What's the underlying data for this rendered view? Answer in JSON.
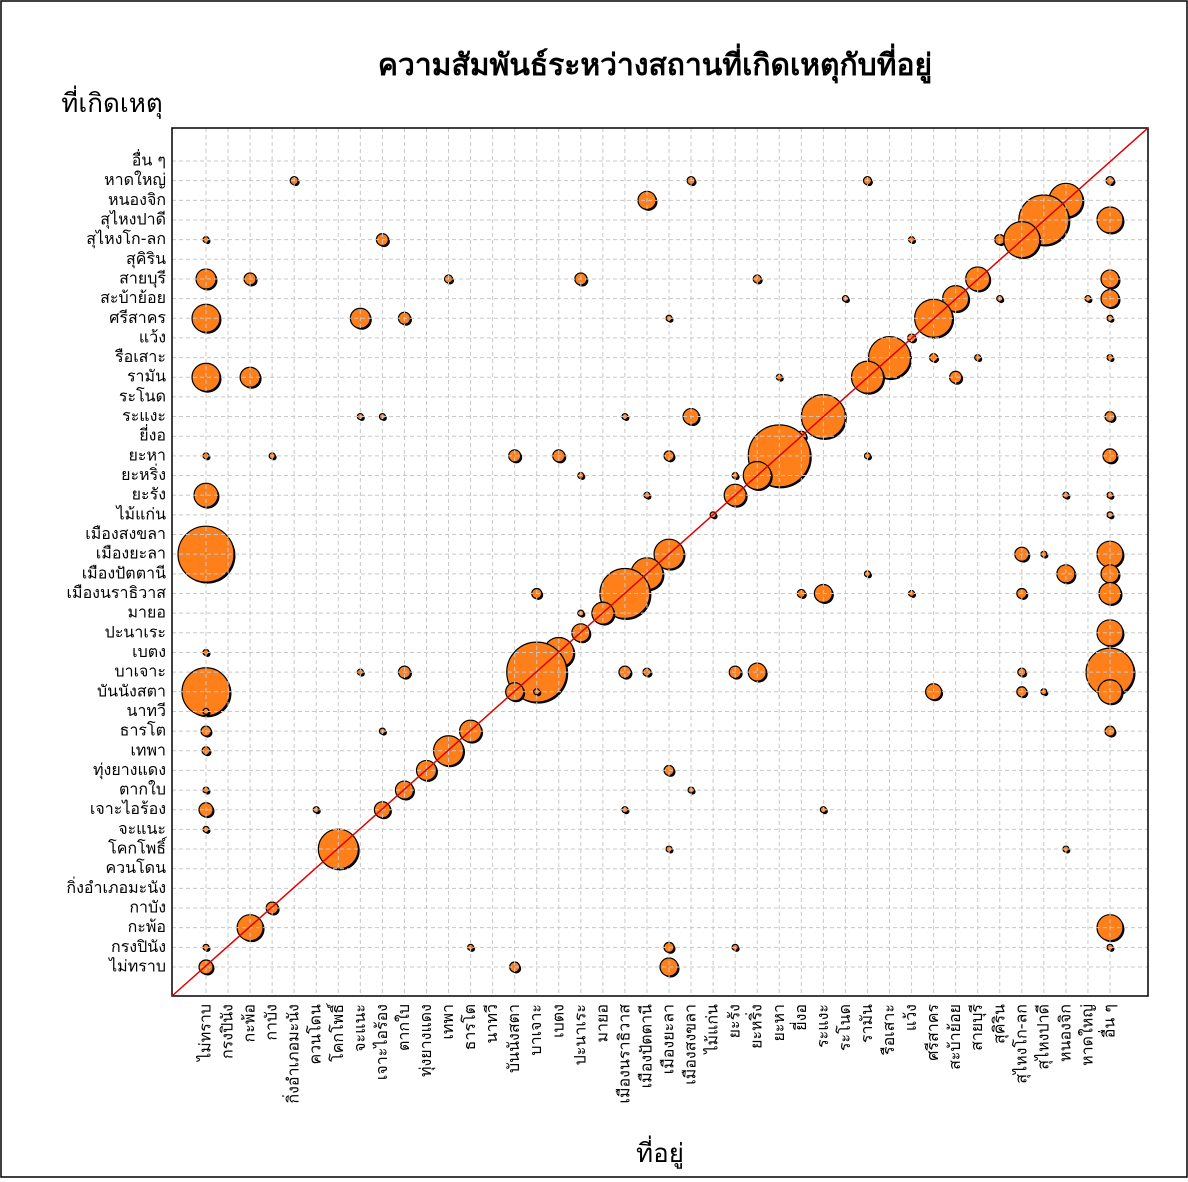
{
  "chart_data": {
    "type": "balloon",
    "title": "ความสัมพันธ์ระหว่างสถานที่เกิดเหตุกับที่อยู่",
    "x_label": "ที่อยู่",
    "y_label": "ที่เกิดเหตุ",
    "color": "#ff7f1a",
    "grid": true,
    "categories": [
      "ไม่ทราบ",
      "กรงปินัง",
      "กะพ้อ",
      "กาบัง",
      "กิ่งอำเภอมะนัง",
      "ควนโดน",
      "โคกโพธิ์",
      "จะแนะ",
      "เจาะไอร้อง",
      "ตากใบ",
      "ทุ่งยางแดง",
      "เทพา",
      "ธารโต",
      "นาทวี",
      "บันนังสตา",
      "บาเจาะ",
      "เบตง",
      "ปะนาเระ",
      "มายอ",
      "เมืองนราธิวาส",
      "เมืองปัตตานี",
      "เมืองยะลา",
      "เมืองสงขลา",
      "ไม้แก่น",
      "ยะรัง",
      "ยะหริ่ง",
      "ยะหา",
      "ยี่งอ",
      "ระแงะ",
      "ระโนด",
      "รามัน",
      "รือเสาะ",
      "แว้ง",
      "ศรีสาคร",
      "สะบ้าย้อย",
      "สายบุรี",
      "สุคิริน",
      "สุไหงโก-ลก",
      "สุไหงปาดี",
      "หนองจิก",
      "หาดใหญ่",
      "อื่น ๆ"
    ],
    "points": [
      {
        "x": "กิ่งอำเภอมะนัง",
        "y": "หาดใหญ่",
        "size": 4
      },
      {
        "x": "เมืองสงขลา",
        "y": "หาดใหญ่",
        "size": 4
      },
      {
        "x": "รามัน",
        "y": "หาดใหญ่",
        "size": 4
      },
      {
        "x": "อื่น ๆ",
        "y": "หาดใหญ่",
        "size": 4
      },
      {
        "x": "เมืองปัตตานี",
        "y": "หนองจิก",
        "size": 9
      },
      {
        "x": "หนองจิก",
        "y": "หนองจิก",
        "size": 17
      },
      {
        "x": "สุไหงปาดี",
        "y": "สุไหงปาดี",
        "size": 25
      },
      {
        "x": "อื่น ๆ",
        "y": "สุไหงปาดี",
        "size": 13
      },
      {
        "x": "ไม่ทราบ",
        "y": "สุไหงโก-ลก",
        "size": 3
      },
      {
        "x": "เจาะไอร้อง",
        "y": "สุไหงโก-ลก",
        "size": 6
      },
      {
        "x": "แว้ง",
        "y": "สุไหงโก-ลก",
        "size": 3
      },
      {
        "x": "สุคิริน",
        "y": "สุไหงโก-ลก",
        "size": 5
      },
      {
        "x": "สุไหงโก-ลก",
        "y": "สุไหงโก-ลก",
        "size": 18
      },
      {
        "x": "ไม่ทราบ",
        "y": "สายบุรี",
        "size": 10
      },
      {
        "x": "กะพ้อ",
        "y": "สายบุรี",
        "size": 6
      },
      {
        "x": "เทพา",
        "y": "สายบุรี",
        "size": 4
      },
      {
        "x": "ปะนาเระ",
        "y": "สายบุรี",
        "size": 6
      },
      {
        "x": "ยะหริ่ง",
        "y": "สายบุรี",
        "size": 4
      },
      {
        "x": "สายบุรี",
        "y": "สายบุรี",
        "size": 12
      },
      {
        "x": "อื่น ๆ",
        "y": "สายบุรี",
        "size": 9
      },
      {
        "x": "ระโนด",
        "y": "สะบ้าย้อย",
        "size": 3
      },
      {
        "x": "สะบ้าย้อย",
        "y": "สะบ้าย้อย",
        "size": 13
      },
      {
        "x": "สุคิริน",
        "y": "สะบ้าย้อย",
        "size": 3
      },
      {
        "x": "หาดใหญ่",
        "y": "สะบ้าย้อย",
        "size": 3
      },
      {
        "x": "อื่น ๆ",
        "y": "สะบ้าย้อย",
        "size": 9
      },
      {
        "x": "ไม่ทราบ",
        "y": "ศรีสาคร",
        "size": 14
      },
      {
        "x": "จะแนะ",
        "y": "ศรีสาคร",
        "size": 10
      },
      {
        "x": "ตากใบ",
        "y": "ศรีสาคร",
        "size": 6
      },
      {
        "x": "เมืองยะลา",
        "y": "ศรีสาคร",
        "size": 3
      },
      {
        "x": "ศรีสาคร",
        "y": "ศรีสาคร",
        "size": 19
      },
      {
        "x": "อื่น ๆ",
        "y": "ศรีสาคร",
        "size": 3
      },
      {
        "x": "แว้ง",
        "y": "แว้ง",
        "size": 4
      },
      {
        "x": "รือเสาะ",
        "y": "รือเสาะ",
        "size": 21
      },
      {
        "x": "ศรีสาคร",
        "y": "รือเสาะ",
        "size": 4
      },
      {
        "x": "สายบุรี",
        "y": "รือเสาะ",
        "size": 3
      },
      {
        "x": "อื่น ๆ",
        "y": "รือเสาะ",
        "size": 3
      },
      {
        "x": "ไม่ทราบ",
        "y": "รามัน",
        "size": 14
      },
      {
        "x": "กะพ้อ",
        "y": "รามัน",
        "size": 10
      },
      {
        "x": "ยะหา",
        "y": "รามัน",
        "size": 3
      },
      {
        "x": "รามัน",
        "y": "รามัน",
        "size": 16
      },
      {
        "x": "สะบ้าย้อย",
        "y": "รามัน",
        "size": 6
      },
      {
        "x": "จะแนะ",
        "y": "ระแงะ",
        "size": 3
      },
      {
        "x": "เจาะไอร้อง",
        "y": "ระแงะ",
        "size": 3
      },
      {
        "x": "เมืองนราธิวาส",
        "y": "ระแงะ",
        "size": 3
      },
      {
        "x": "เมืองสงขลา",
        "y": "ระแงะ",
        "size": 8
      },
      {
        "x": "ระแงะ",
        "y": "ระแงะ",
        "size": 22
      },
      {
        "x": "อื่น ๆ",
        "y": "ระแงะ",
        "size": 5
      },
      {
        "x": "ยี่งอ",
        "y": "ยี่งอ",
        "size": 5
      },
      {
        "x": "ไม่ทราบ",
        "y": "ยะหา",
        "size": 3
      },
      {
        "x": "กาบัง",
        "y": "ยะหา",
        "size": 3
      },
      {
        "x": "บันนังสตา",
        "y": "ยะหา",
        "size": 6
      },
      {
        "x": "เบตง",
        "y": "ยะหา",
        "size": 6
      },
      {
        "x": "เมืองยะลา",
        "y": "ยะหา",
        "size": 5
      },
      {
        "x": "ยะหา",
        "y": "ยะหา",
        "size": 31
      },
      {
        "x": "รามัน",
        "y": "ยะหา",
        "size": 3
      },
      {
        "x": "อื่น ๆ",
        "y": "ยะหา",
        "size": 7
      },
      {
        "x": "ปะนาเระ",
        "y": "ยะหริ่ง",
        "size": 3
      },
      {
        "x": "ยะรัง",
        "y": "ยะหริ่ง",
        "size": 3
      },
      {
        "x": "ยะหริ่ง",
        "y": "ยะหริ่ง",
        "size": 14
      },
      {
        "x": "ไม่ทราบ",
        "y": "ยะรัง",
        "size": 12
      },
      {
        "x": "เมืองปัตตานี",
        "y": "ยะรัง",
        "size": 3
      },
      {
        "x": "ยะรัง",
        "y": "ยะรัง",
        "size": 11
      },
      {
        "x": "หนองจิก",
        "y": "ยะรัง",
        "size": 3
      },
      {
        "x": "อื่น ๆ",
        "y": "ยะรัง",
        "size": 3
      },
      {
        "x": "ไม้แก่น",
        "y": "ไม้แก่น",
        "size": 3
      },
      {
        "x": "อื่น ๆ",
        "y": "ไม้แก่น",
        "size": 3
      },
      {
        "x": "ไม่ทราบ",
        "y": "เมืองยะลา",
        "size": 28
      },
      {
        "x": "เมืองยะลา",
        "y": "เมืองยะลา",
        "size": 15
      },
      {
        "x": "สุไหงโก-ลก",
        "y": "เมืองยะลา",
        "size": 7
      },
      {
        "x": "สุไหงปาดี",
        "y": "เมืองยะลา",
        "size": 3
      },
      {
        "x": "อื่น ๆ",
        "y": "เมืองยะลา",
        "size": 13
      },
      {
        "x": "เมืองปัตตานี",
        "y": "เมืองปัตตานี",
        "size": 16
      },
      {
        "x": "รามัน",
        "y": "เมืองปัตตานี",
        "size": 3
      },
      {
        "x": "หนองจิก",
        "y": "เมืองปัตตานี",
        "size": 9
      },
      {
        "x": "อื่น ๆ",
        "y": "เมืองปัตตานี",
        "size": 9
      },
      {
        "x": "บาเจาะ",
        "y": "เมืองนราธิวาส",
        "size": 5
      },
      {
        "x": "เมืองนราธิวาส",
        "y": "เมืองนราธิวาส",
        "size": 25
      },
      {
        "x": "ยี่งอ",
        "y": "เมืองนราธิวาส",
        "size": 4
      },
      {
        "x": "ระแงะ",
        "y": "เมืองนราธิวาส",
        "size": 9
      },
      {
        "x": "แว้ง",
        "y": "เมืองนราธิวาส",
        "size": 3
      },
      {
        "x": "สุไหงโก-ลก",
        "y": "เมืองนราธิวาส",
        "size": 5
      },
      {
        "x": "อื่น ๆ",
        "y": "เมืองนราธิวาส",
        "size": 11
      },
      {
        "x": "ปะนาเระ",
        "y": "มายอ",
        "size": 3
      },
      {
        "x": "มายอ",
        "y": "มายอ",
        "size": 11
      },
      {
        "x": "ปะนาเระ",
        "y": "ปะนาเระ",
        "size": 9
      },
      {
        "x": "อื่น ๆ",
        "y": "ปะนาเระ",
        "size": 13
      },
      {
        "x": "ไม่ทราบ",
        "y": "เบตง",
        "size": 3
      },
      {
        "x": "เบตง",
        "y": "เบตง",
        "size": 15
      },
      {
        "x": "ไม่ทราบ",
        "y": "บาเจาะ",
        "size": 3
      },
      {
        "x": "จะแนะ",
        "y": "บาเจาะ",
        "size": 3
      },
      {
        "x": "ตากใบ",
        "y": "บาเจาะ",
        "size": 6
      },
      {
        "x": "บาเจาะ",
        "y": "บาเจาะ",
        "size": 30
      },
      {
        "x": "เมืองนราธิวาส",
        "y": "บาเจาะ",
        "size": 6
      },
      {
        "x": "เมืองปัตตานี",
        "y": "บาเจาะ",
        "size": 4
      },
      {
        "x": "ยะรัง",
        "y": "บาเจาะ",
        "size": 6
      },
      {
        "x": "ยะหริ่ง",
        "y": "บาเจาะ",
        "size": 9
      },
      {
        "x": "สุไหงโก-ลก",
        "y": "บาเจาะ",
        "size": 4
      },
      {
        "x": "อื่น ๆ",
        "y": "บาเจาะ",
        "size": 24
      },
      {
        "x": "ไม่ทราบ",
        "y": "บันนังสตา",
        "size": 24
      },
      {
        "x": "บันนังสตา",
        "y": "บันนังสตา",
        "size": 9
      },
      {
        "x": "บาเจาะ",
        "y": "บันนังสตา",
        "size": 3
      },
      {
        "x": "ศรีสาคร",
        "y": "บันนังสตา",
        "size": 8
      },
      {
        "x": "สุไหงโก-ลก",
        "y": "บันนังสตา",
        "size": 5
      },
      {
        "x": "สุไหงปาดี",
        "y": "บันนังสตา",
        "size": 3
      },
      {
        "x": "อื่น ๆ",
        "y": "บันนังสตา",
        "size": 12
      },
      {
        "x": "ไม่ทราบ",
        "y": "นาทวี",
        "size": 3
      },
      {
        "x": "ไม่ทราบ",
        "y": "ธารโต",
        "size": 5
      },
      {
        "x": "เจาะไอร้อง",
        "y": "ธารโต",
        "size": 3
      },
      {
        "x": "ธารโต",
        "y": "ธารโต",
        "size": 11
      },
      {
        "x": "อื่น ๆ",
        "y": "ธารโต",
        "size": 5
      },
      {
        "x": "ไม่ทราบ",
        "y": "เทพา",
        "size": 4
      },
      {
        "x": "เทพา",
        "y": "เทพา",
        "size": 15
      },
      {
        "x": "ทุ่งยางแดง",
        "y": "ทุ่งยางแดง",
        "size": 10
      },
      {
        "x": "เมืองยะลา",
        "y": "ทุ่งยางแดง",
        "size": 5
      },
      {
        "x": "ไม่ทราบ",
        "y": "ตากใบ",
        "size": 3
      },
      {
        "x": "ตากใบ",
        "y": "ตากใบ",
        "size": 9
      },
      {
        "x": "เมืองสงขลา",
        "y": "ตากใบ",
        "size": 3
      },
      {
        "x": "ไม่ทราบ",
        "y": "เจาะไอร้อง",
        "size": 7
      },
      {
        "x": "ควนโดน",
        "y": "เจาะไอร้อง",
        "size": 3
      },
      {
        "x": "เจาะไอร้อง",
        "y": "เจาะไอร้อง",
        "size": 8
      },
      {
        "x": "เมืองนราธิวาส",
        "y": "เจาะไอร้อง",
        "size": 3
      },
      {
        "x": "ระแงะ",
        "y": "เจาะไอร้อง",
        "size": 3
      },
      {
        "x": "ไม่ทราบ",
        "y": "จะแนะ",
        "size": 3
      },
      {
        "x": "โคกโพธิ์",
        "y": "โคกโพธิ์",
        "size": 20
      },
      {
        "x": "เมืองยะลา",
        "y": "โคกโพธิ์",
        "size": 3
      },
      {
        "x": "หนองจิก",
        "y": "โคกโพธิ์",
        "size": 3
      },
      {
        "x": "กาบัง",
        "y": "กาบัง",
        "size": 6
      },
      {
        "x": "กะพ้อ",
        "y": "กะพ้อ",
        "size": 13
      },
      {
        "x": "อื่น ๆ",
        "y": "กะพ้อ",
        "size": 13
      },
      {
        "x": "ไม่ทราบ",
        "y": "กรงปินัง",
        "size": 3
      },
      {
        "x": "ธารโต",
        "y": "กรงปินัง",
        "size": 3
      },
      {
        "x": "เมืองยะลา",
        "y": "กรงปินัง",
        "size": 5
      },
      {
        "x": "ยะรัง",
        "y": "กรงปินัง",
        "size": 3
      },
      {
        "x": "อื่น ๆ",
        "y": "กรงปินัง",
        "size": 3
      },
      {
        "x": "ไม่ทราบ",
        "y": "ไม่ทราบ",
        "size": 7
      },
      {
        "x": "บันนังสตา",
        "y": "ไม่ทราบ",
        "size": 5
      },
      {
        "x": "เมืองยะลา",
        "y": "ไม่ทราบ",
        "size": 9
      }
    ]
  }
}
